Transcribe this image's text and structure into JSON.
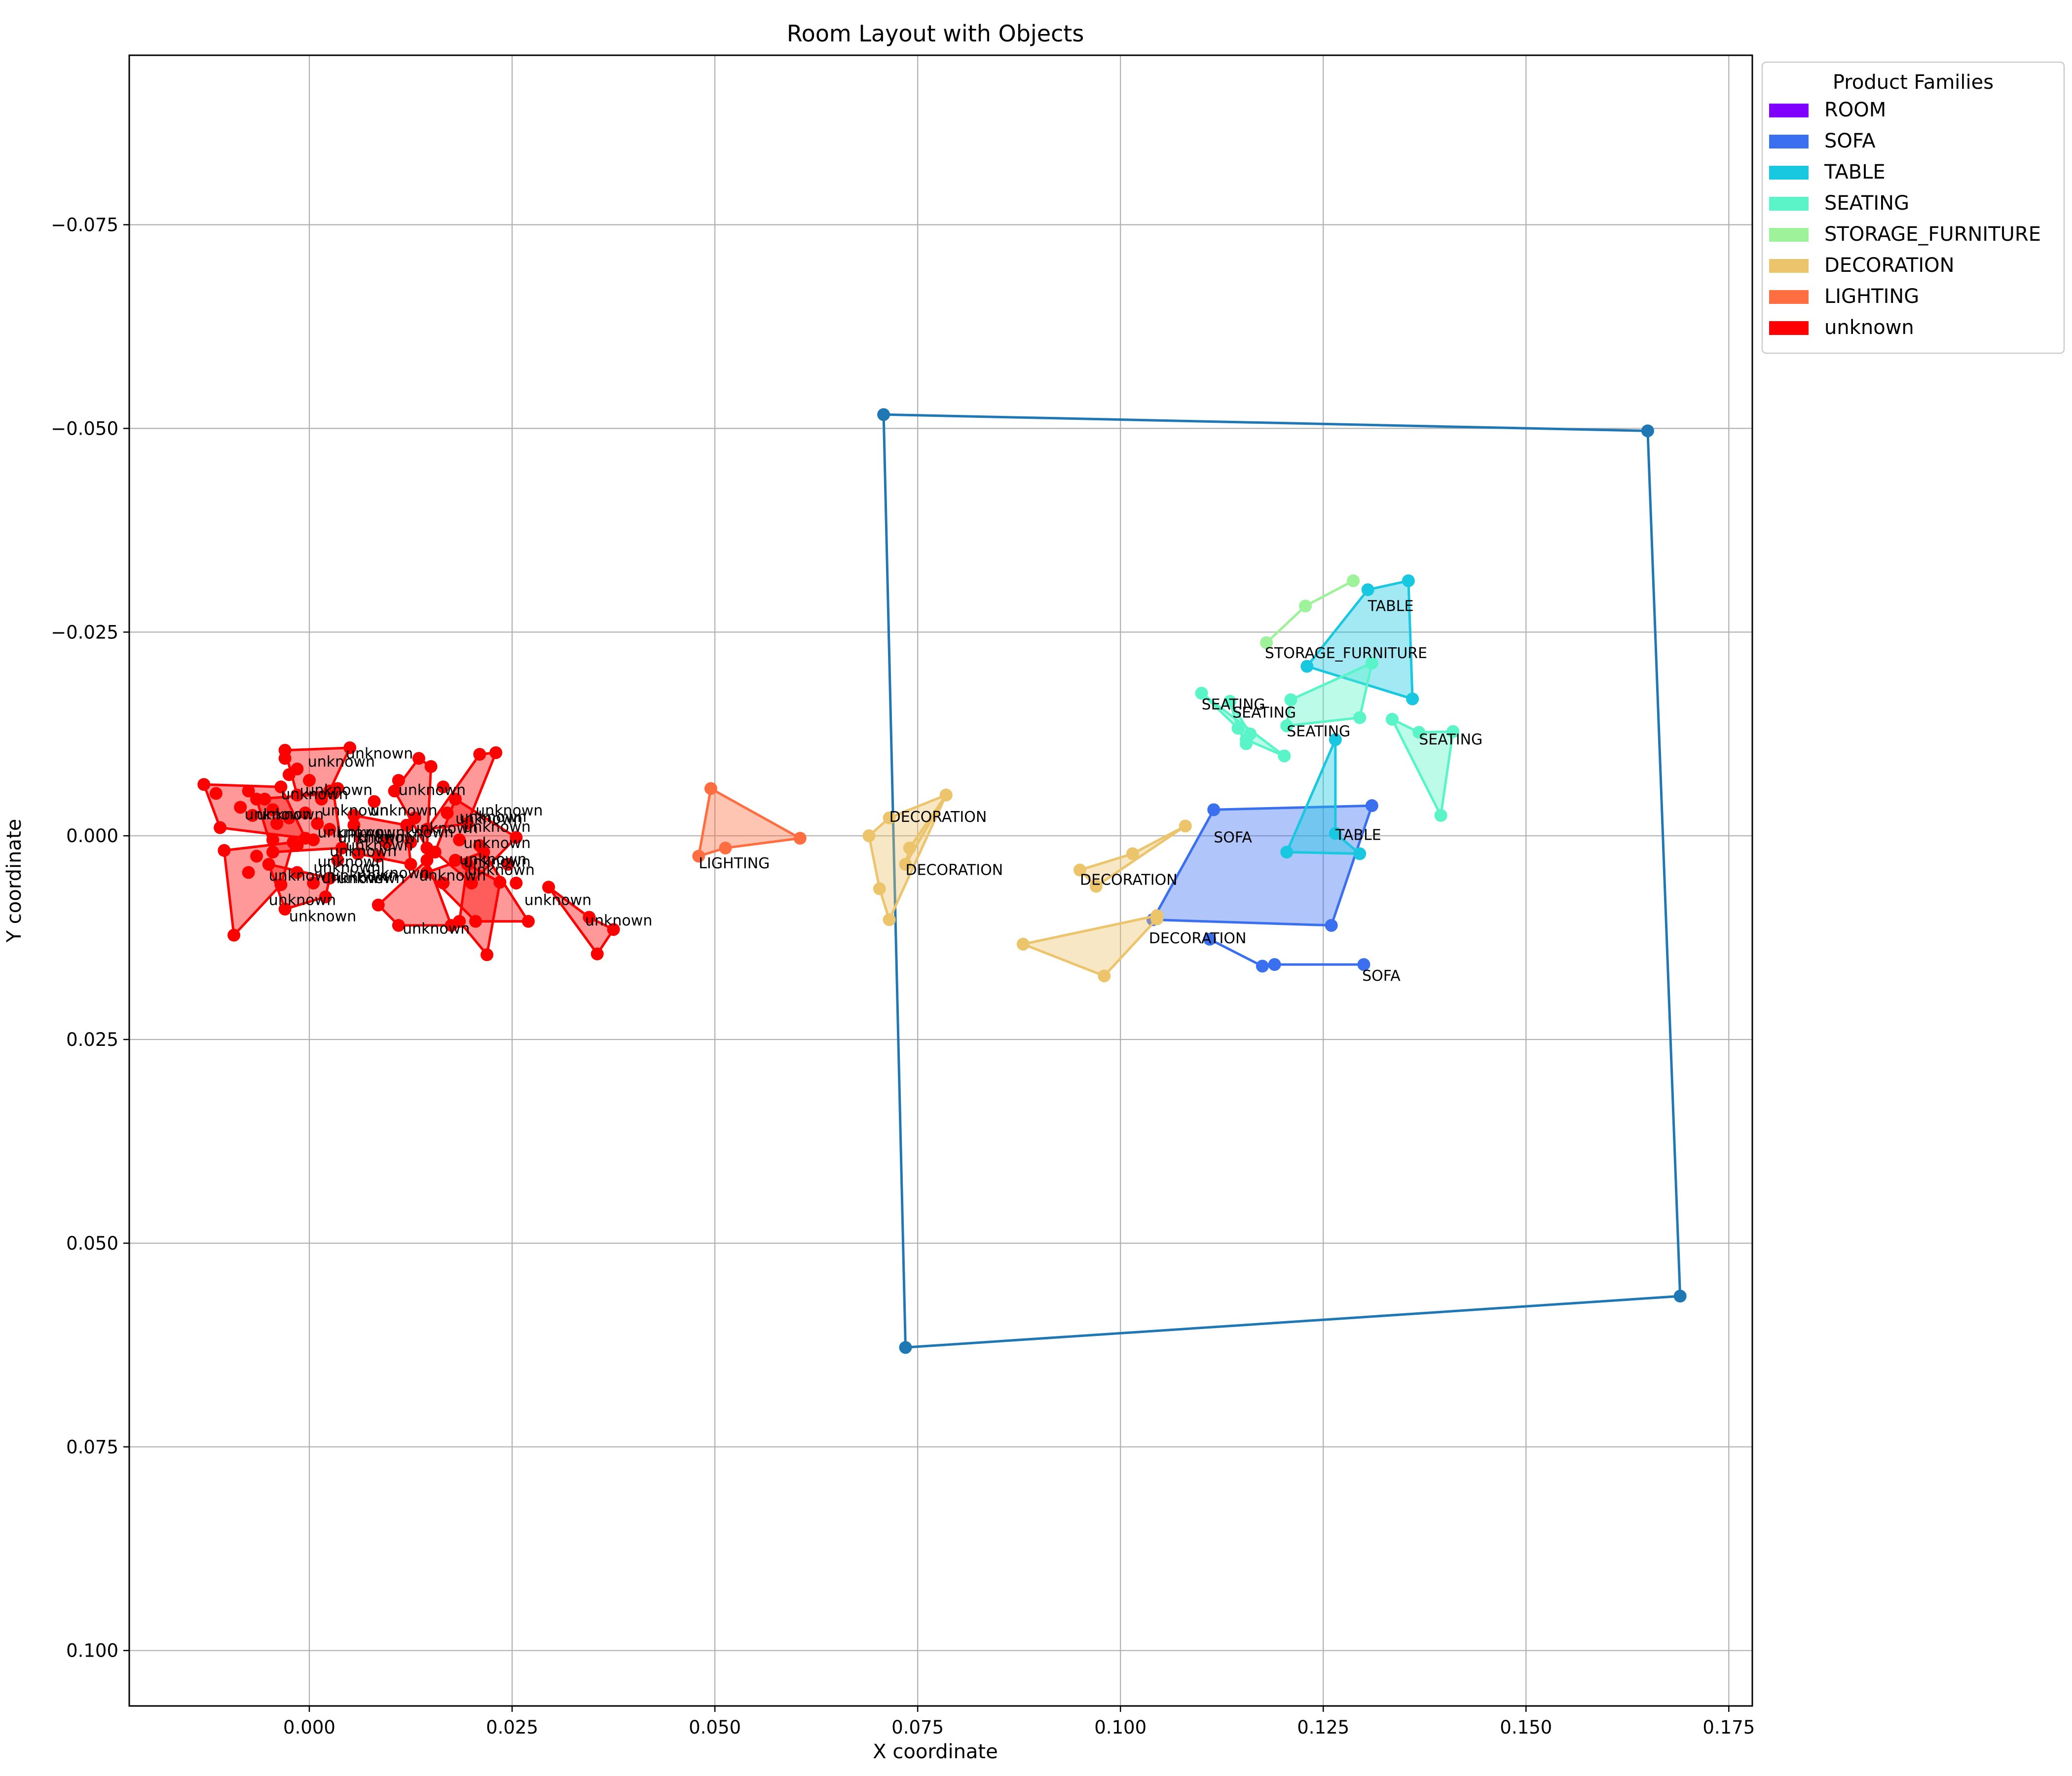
{
  "chart_data": {
    "type": "scatter",
    "title": "Room Layout with Objects",
    "xlabel": "X coordinate",
    "ylabel": "Y coordinate",
    "xlim": [
      -0.0222,
      0.1779
    ],
    "ylim": [
      0.1068,
      -0.0958
    ],
    "y_inverted": true,
    "grid": true,
    "x_ticks": [
      0.0,
      0.025,
      0.05,
      0.075,
      0.1,
      0.125,
      0.15,
      0.175
    ],
    "x_tick_labels": [
      "0.000",
      "0.025",
      "0.050",
      "0.075",
      "0.100",
      "0.125",
      "0.150",
      "0.175"
    ],
    "y_ticks": [
      -0.075,
      -0.05,
      -0.025,
      0.0,
      0.025,
      0.05,
      0.075,
      0.1
    ],
    "y_tick_labels": [
      "−0.075",
      "−0.050",
      "−0.025",
      "0.000",
      "0.025",
      "0.050",
      "0.075",
      "0.100"
    ],
    "legend": {
      "title": "Product Families",
      "placement": "outside-top-right",
      "entries": [
        {
          "name": "ROOM",
          "color": "#8000ff"
        },
        {
          "name": "SOFA",
          "color": "#3a6ff0"
        },
        {
          "name": "TABLE",
          "color": "#18c7e0"
        },
        {
          "name": "SEATING",
          "color": "#59f5c8"
        },
        {
          "name": "STORAGE_FURNITURE",
          "color": "#9ef29a"
        },
        {
          "name": "DECORATION",
          "color": "#ecc46c"
        },
        {
          "name": "LIGHTING",
          "color": "#ff6e41"
        },
        {
          "name": "unknown",
          "color": "#ff0000"
        }
      ]
    },
    "room": {
      "color": "#1f77b4",
      "points": [
        [
          0.0708,
          -0.0517
        ],
        [
          0.165,
          -0.0497
        ],
        [
          0.169,
          0.0565
        ],
        [
          0.0735,
          0.0628
        ]
      ]
    },
    "objects": [
      {
        "family": "SOFA",
        "label": "SOFA",
        "color": "#3a6ff0",
        "filled": true,
        "points": [
          [
            0.1115,
            -0.0032
          ],
          [
            0.131,
            -0.0037
          ],
          [
            0.126,
            0.011
          ],
          [
            0.104,
            0.0103
          ]
        ],
        "label_at": [
          0.1115,
          0.0008
        ]
      },
      {
        "family": "SOFA",
        "label": "SOFA",
        "color": "#3a6ff0",
        "filled": false,
        "points": [
          [
            0.111,
            0.0127
          ],
          [
            0.1175,
            0.016
          ],
          [
            0.119,
            0.0158
          ],
          [
            0.13,
            0.0158
          ]
        ],
        "label_at": [
          0.1298,
          0.0178
        ]
      },
      {
        "family": "TABLE",
        "label": "TABLE",
        "color": "#18c7e0",
        "filled": true,
        "points": [
          [
            0.123,
            -0.0208
          ],
          [
            0.1305,
            -0.0302
          ],
          [
            0.1355,
            -0.0313
          ],
          [
            0.136,
            -0.0168
          ]
        ],
        "label_at": [
          0.1305,
          -0.0276
        ]
      },
      {
        "family": "TABLE",
        "label": "TABLE",
        "color": "#18c7e0",
        "filled": true,
        "points": [
          [
            0.1265,
            -0.0118
          ],
          [
            0.1265,
            -0.0003
          ],
          [
            0.1295,
            0.0022
          ],
          [
            0.1205,
            0.002
          ]
        ],
        "label_at": [
          0.1265,
          0.0005
        ]
      },
      {
        "family": "STORAGE_FURNITURE",
        "label": "STORAGE_FURNITURE",
        "color": "#9ef29a",
        "filled": false,
        "points": [
          [
            0.118,
            -0.0237
          ],
          [
            0.1228,
            -0.0282
          ],
          [
            0.1287,
            -0.0313
          ]
        ],
        "label_at": [
          0.1178,
          -0.0218
        ]
      },
      {
        "family": "SEATING",
        "label": "SEATING",
        "color": "#59f5c8",
        "filled": true,
        "points": [
          [
            0.121,
            -0.0167
          ],
          [
            0.131,
            -0.0212
          ],
          [
            0.1295,
            -0.0145
          ],
          [
            0.1205,
            -0.0135
          ]
        ],
        "label_at": [
          0.1205,
          -0.0122
        ]
      },
      {
        "family": "SEATING",
        "label": "SEATING",
        "color": "#59f5c8",
        "filled": true,
        "points": [
          [
            0.11,
            -0.0175
          ],
          [
            0.1145,
            -0.0132
          ],
          [
            0.1155,
            -0.0118
          ],
          [
            0.1202,
            -0.0098
          ]
        ],
        "label_at": [
          0.11,
          -0.0155
        ]
      },
      {
        "family": "SEATING",
        "label": "SEATING",
        "color": "#59f5c8",
        "filled": true,
        "points": [
          [
            0.1135,
            -0.0165
          ],
          [
            0.116,
            -0.0125
          ],
          [
            0.1155,
            -0.0113
          ],
          [
            0.1145,
            -0.0132
          ]
        ],
        "label_at": [
          0.1138,
          -0.0145
        ]
      },
      {
        "family": "SEATING",
        "label": "SEATING",
        "color": "#59f5c8",
        "filled": true,
        "points": [
          [
            0.1335,
            -0.0143
          ],
          [
            0.1368,
            -0.0127
          ],
          [
            0.141,
            -0.0128
          ],
          [
            0.1395,
            -0.0025
          ]
        ],
        "label_at": [
          0.1368,
          -0.0112
        ]
      },
      {
        "family": "DECORATION",
        "label": "DECORATION",
        "color": "#ecc46c",
        "filled": true,
        "points": [
          [
            0.0715,
            -0.0022
          ],
          [
            0.0785,
            -0.005
          ],
          [
            0.0715,
            0.0103
          ],
          [
            0.0703,
            0.0065
          ],
          [
            0.069,
            0.0
          ]
        ],
        "label_at": [
          0.0715,
          -0.0017
        ]
      },
      {
        "family": "DECORATION",
        "label": "DECORATION",
        "color": "#ecc46c",
        "filled": true,
        "points": [
          [
            0.074,
            0.0015
          ],
          [
            0.0785,
            -0.005
          ],
          [
            0.0735,
            0.0035
          ]
        ],
        "label_at": [
          0.0735,
          0.0048
        ]
      },
      {
        "family": "DECORATION",
        "label": "DECORATION",
        "color": "#ecc46c",
        "filled": true,
        "points": [
          [
            0.095,
            0.0042
          ],
          [
            0.1015,
            0.0022
          ],
          [
            0.108,
            -0.0012
          ],
          [
            0.097,
            0.0062
          ]
        ],
        "label_at": [
          0.095,
          0.006
        ]
      },
      {
        "family": "DECORATION",
        "label": "DECORATION",
        "color": "#ecc46c",
        "filled": true,
        "points": [
          [
            0.088,
            0.0133
          ],
          [
            0.1045,
            0.0098
          ],
          [
            0.1045,
            0.0102
          ],
          [
            0.098,
            0.0172
          ]
        ],
        "label_at": [
          0.1035,
          0.0132
        ]
      },
      {
        "family": "LIGHTING",
        "label": "LIGHTING",
        "color": "#ff6e41",
        "filled": true,
        "points": [
          [
            0.0495,
            -0.0058
          ],
          [
            0.0605,
            0.0003
          ],
          [
            0.0513,
            0.0015
          ],
          [
            0.048,
            0.0025
          ]
        ],
        "label_at": [
          0.048,
          0.004
        ]
      },
      {
        "family": "unknown",
        "label": "unknown",
        "color": "#ff0000",
        "filled": true,
        "points": [
          [
            -0.013,
            -0.0063
          ],
          [
            -0.0035,
            -0.006
          ],
          [
            -0.0005,
            0.0003
          ],
          [
            -0.011,
            -0.001
          ]
        ],
        "label_at": [
          -0.008,
          -0.002
        ]
      },
      {
        "family": "unknown",
        "label": "unknown",
        "color": "#ff0000",
        "filled": true,
        "points": [
          [
            -0.0105,
            0.0018
          ],
          [
            -0.002,
            0.0008
          ],
          [
            -0.0035,
            0.006
          ],
          [
            -0.0093,
            0.0122
          ]
        ],
        "label_at": [
          -0.005,
          0.0085
        ]
      },
      {
        "family": "unknown",
        "label": "unknown",
        "color": "#ff0000",
        "filled": true,
        "points": [
          [
            -0.003,
            -0.0105
          ],
          [
            0.005,
            -0.0108
          ],
          [
            0.0025,
            -0.0055
          ],
          [
            -0.0015,
            -0.005
          ]
        ],
        "label_at": [
          -0.0002,
          -0.0085
        ]
      },
      {
        "family": "unknown",
        "label": "unknown",
        "color": "#ff0000",
        "filled": true,
        "points": [
          [
            -0.0065,
            -0.0045
          ],
          [
            0.003,
            -0.0052
          ],
          [
            0.004,
            0.0015
          ],
          [
            -0.0045,
            0.002
          ]
        ],
        "label_at": [
          -0.0005,
          -0.005
        ]
      },
      {
        "family": "unknown",
        "label": "unknown",
        "color": "#ff0000",
        "filled": true,
        "points": [
          [
            0.0105,
            -0.0055
          ],
          [
            0.0135,
            -0.0095
          ],
          [
            0.015,
            -0.0085
          ],
          [
            0.0145,
            0.0015
          ]
        ],
        "label_at": [
          0.011,
          -0.005
        ]
      },
      {
        "family": "unknown",
        "label": "unknown",
        "color": "#ff0000",
        "filled": true,
        "points": [
          [
            0.0145,
            -0.0008
          ],
          [
            0.021,
            -0.01
          ],
          [
            0.023,
            -0.0102
          ],
          [
            0.0195,
            -0.0015
          ]
        ],
        "label_at": [
          0.018,
          -0.0015
        ]
      },
      {
        "family": "unknown",
        "label": "unknown",
        "color": "#ff0000",
        "filled": true,
        "points": [
          [
            0.018,
            -0.0045
          ],
          [
            0.0255,
            0.0002
          ],
          [
            0.02,
            0.0058
          ],
          [
            0.0155,
            0.002
          ]
        ],
        "label_at": [
          0.019,
          -0.0005
        ]
      },
      {
        "family": "unknown",
        "label": "unknown",
        "color": "#ff0000",
        "filled": true,
        "points": [
          [
            0.0085,
            0.0085
          ],
          [
            0.0145,
            0.003
          ],
          [
            0.0175,
            0.011
          ],
          [
            0.011,
            0.011
          ]
        ],
        "label_at": [
          0.0115,
          0.012
        ]
      },
      {
        "family": "unknown",
        "label": "unknown",
        "color": "#ff0000",
        "filled": true,
        "points": [
          [
            0.0145,
            0.0045
          ],
          [
            0.0215,
            0.002
          ],
          [
            0.027,
            0.0105
          ],
          [
            0.0205,
            0.0105
          ]
        ],
        "label_at": [
          0.0135,
          0.0055
        ]
      },
      {
        "family": "unknown",
        "label": "unknown",
        "color": "#ff0000",
        "filled": true,
        "points": [
          [
            0.0195,
            0.0035
          ],
          [
            0.0235,
            0.0057
          ],
          [
            0.0219,
            0.0146
          ],
          [
            0.0185,
            0.0105
          ]
        ],
        "label_at": [
          0.0185,
          0.0035
        ]
      },
      {
        "family": "unknown",
        "label": "unknown",
        "color": "#ff0000",
        "filled": true,
        "points": [
          [
            0.0295,
            0.0063
          ],
          [
            0.0345,
            0.01
          ],
          [
            0.0375,
            0.0115
          ],
          [
            0.0355,
            0.0145
          ]
        ],
        "label_at": [
          0.034,
          0.011
        ]
      },
      {
        "family": "unknown",
        "label": "unknown",
        "color": "#ff0000",
        "filled": true,
        "points": [
          [
            -0.005,
            0.0035
          ],
          [
            0.0025,
            0.0052
          ],
          [
            0.002,
            0.0075
          ],
          [
            -0.003,
            0.009
          ]
        ],
        "label_at": [
          -0.005,
          0.0055
        ]
      },
      {
        "family": "unknown",
        "label": "unknown",
        "color": "#ff0000",
        "filled": true,
        "points": [
          [
            0.0055,
            -0.0025
          ],
          [
            0.012,
            -0.0013
          ],
          [
            0.0125,
            0.0035
          ],
          [
            0.006,
            0.0022
          ]
        ],
        "label_at": [
          0.0025,
          0.0025
        ]
      }
    ],
    "scattered_labels": [
      {
        "text": "unknown",
        "at": [
          0.0045,
          -0.0095
        ]
      },
      {
        "text": "unknown",
        "at": [
          -0.0035,
          -0.0045
        ]
      },
      {
        "text": "unknown",
        "at": [
          -0.0065,
          -0.002
        ]
      },
      {
        "text": "unknown",
        "at": [
          0.0015,
          -0.0025
        ]
      },
      {
        "text": "unknown",
        "at": [
          0.0075,
          -0.0025
        ]
      },
      {
        "text": "unknown",
        "at": [
          0.0205,
          -0.0025
        ]
      },
      {
        "text": "unknown",
        "at": [
          0.0185,
          -0.0017
        ]
      },
      {
        "text": "unknown",
        "at": [
          0.0125,
          -0.0003
        ]
      },
      {
        "text": "unknown",
        "at": [
          0.0035,
          0.0002
        ]
      },
      {
        "text": "unknown",
        "at": [
          0.006,
          0.0008
        ]
      },
      {
        "text": "unknown",
        "at": [
          0.0095,
          0.0002
        ]
      },
      {
        "text": "unknown",
        "at": [
          0.0045,
          0.0018
        ]
      },
      {
        "text": "unknown",
        "at": [
          0.019,
          0.0015
        ]
      },
      {
        "text": "unknown",
        "at": [
          0.019,
          0.0038
        ]
      },
      {
        "text": "unknown",
        "at": [
          0.0065,
          0.0052
        ]
      },
      {
        "text": "unknown",
        "at": [
          0.0015,
          0.0058
        ]
      },
      {
        "text": "unknown",
        "at": [
          0.0035,
          0.0058
        ]
      },
      {
        "text": "unknown",
        "at": [
          0.0195,
          0.0048
        ]
      },
      {
        "text": "unknown",
        "at": [
          0.001,
          0.0038
        ]
      },
      {
        "text": "unknown",
        "at": [
          0.0005,
          0.0045
        ]
      },
      {
        "text": "unknown",
        "at": [
          0.0026,
          0.0055
        ]
      },
      {
        "text": "unknown",
        "at": [
          -0.0025,
          0.0105
        ]
      },
      {
        "text": "unknown",
        "at": [
          0.0265,
          0.0085
        ]
      },
      {
        "text": "unknown",
        "at": [
          0.0035,
          0.0008
        ]
      },
      {
        "text": "unknown",
        "at": [
          0.001,
          0.0002
        ]
      }
    ],
    "extra_points": [
      [
        -0.0075,
        -0.0055
      ],
      [
        -0.0055,
        -0.0045
      ],
      [
        -0.0085,
        -0.0035
      ],
      [
        -0.0025,
        -0.0075
      ],
      [
        -0.0015,
        -0.0082
      ],
      [
        -0.0045,
        -0.0032
      ],
      [
        -0.007,
        -0.0025
      ],
      [
        -0.004,
        -0.0015
      ],
      [
        -0.0005,
        -0.0028
      ],
      [
        0.0015,
        -0.0045
      ],
      [
        -0.0025,
        -0.0022
      ],
      [
        0.001,
        -0.0015
      ],
      [
        -0.0045,
        0.0005
      ],
      [
        -0.0015,
        0.0012
      ],
      [
        0.0005,
        0.0005
      ],
      [
        0.0025,
        -0.0008
      ],
      [
        -0.0075,
        0.0045
      ],
      [
        -0.0065,
        0.0025
      ],
      [
        -0.0015,
        0.0045
      ],
      [
        0.0005,
        0.0058
      ],
      [
        0.008,
        -0.0042
      ],
      [
        0.011,
        -0.0068
      ],
      [
        0.0165,
        -0.006
      ],
      [
        0.013,
        -0.0022
      ],
      [
        0.0095,
        0.0008
      ],
      [
        0.0125,
        0.0008
      ],
      [
        0.017,
        -0.0028
      ],
      [
        0.0185,
        0.0005
      ],
      [
        0.021,
        0.0012
      ],
      [
        0.0245,
        0.0035
      ],
      [
        0.0255,
        0.0058
      ],
      [
        0.0165,
        0.0058
      ],
      [
        0.018,
        0.003
      ],
      [
        0.0085,
        0.0025
      ],
      [
        0.0055,
        -0.0013
      ],
      [
        0.0035,
        0.003
      ],
      [
        -0.003,
        -0.0095
      ],
      [
        0.0,
        -0.0068
      ],
      [
        0.0035,
        -0.0058
      ],
      [
        -0.0115,
        -0.0052
      ]
    ]
  }
}
